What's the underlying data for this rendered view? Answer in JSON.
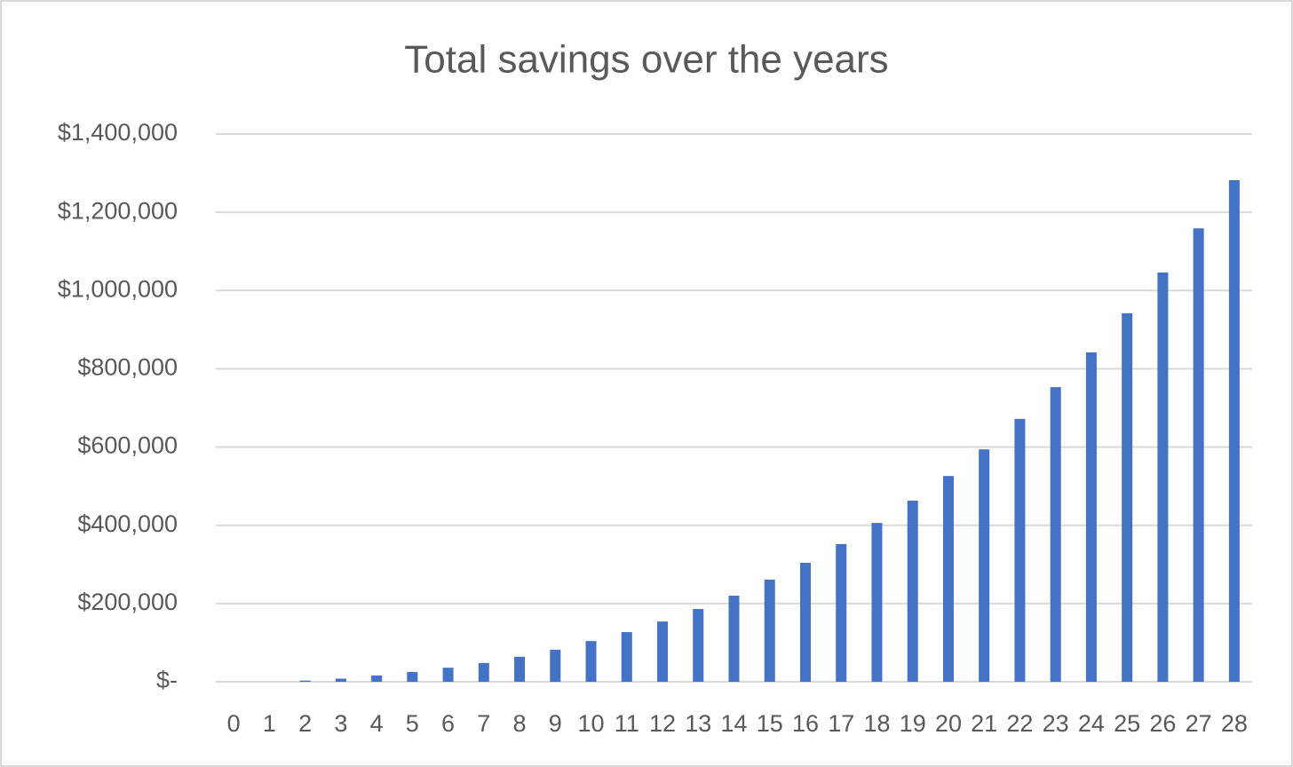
{
  "chart_data": {
    "type": "bar",
    "title": "Total savings over the years",
    "categories": [
      "0",
      "1",
      "2",
      "3",
      "4",
      "5",
      "6",
      "7",
      "8",
      "9",
      "10",
      "11",
      "12",
      "13",
      "14",
      "15",
      "16",
      "17",
      "18",
      "19",
      "20",
      "21",
      "22",
      "23",
      "24",
      "25",
      "26",
      "27",
      "28"
    ],
    "values": [
      0,
      0,
      3000,
      8000,
      16000,
      25000,
      36000,
      48000,
      64000,
      82000,
      104000,
      127000,
      154000,
      186000,
      220000,
      261000,
      304000,
      352000,
      406000,
      463000,
      526000,
      594000,
      672000,
      753000,
      842000,
      942000,
      1046000,
      1159000,
      1282000
    ],
    "color": "#4472c4",
    "ylim": [
      0,
      1400000
    ],
    "yticks": [
      {
        "value": 0,
        "label": "$-"
      },
      {
        "value": 200000,
        "label": "$200,000"
      },
      {
        "value": 400000,
        "label": "$400,000"
      },
      {
        "value": 600000,
        "label": "$600,000"
      },
      {
        "value": 800000,
        "label": "$800,000"
      },
      {
        "value": 1000000,
        "label": "$1,000,000"
      },
      {
        "value": 1200000,
        "label": "$1,200,000"
      },
      {
        "value": 1400000,
        "label": "$1,400,000"
      }
    ],
    "grid": true
  }
}
